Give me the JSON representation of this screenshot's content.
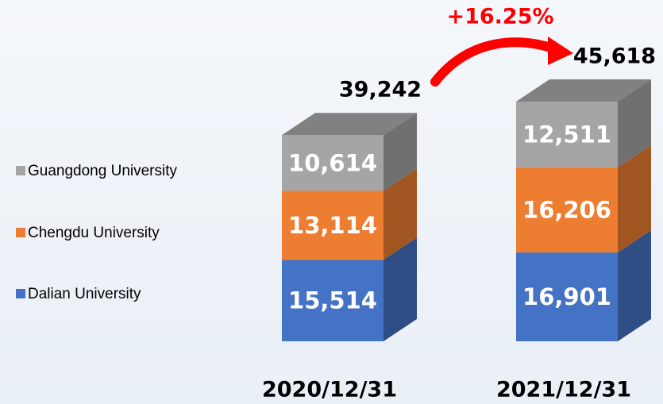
{
  "chart_data": {
    "type": "bar3d_stacked",
    "annotation": "+16.25%",
    "categories": [
      "2020/12/31",
      "2021/12/31"
    ],
    "series": [
      {
        "name": "Dalian University",
        "color": "#4472c4",
        "values": [
          15514,
          16901
        ],
        "value_labels": [
          "15,514",
          "16,901"
        ]
      },
      {
        "name": "Chengdu University",
        "color": "#ed7d31",
        "values": [
          13114,
          16206
        ],
        "value_labels": [
          "13,114",
          "16,206"
        ]
      },
      {
        "name": "Guangdong University",
        "color": "#a5a5a5",
        "values": [
          10614,
          12511
        ],
        "value_labels": [
          "10,614",
          "12,511"
        ]
      }
    ],
    "totals": {
      "values": [
        39242,
        45618
      ],
      "value_labels": [
        "39,242",
        "45,618"
      ]
    }
  }
}
